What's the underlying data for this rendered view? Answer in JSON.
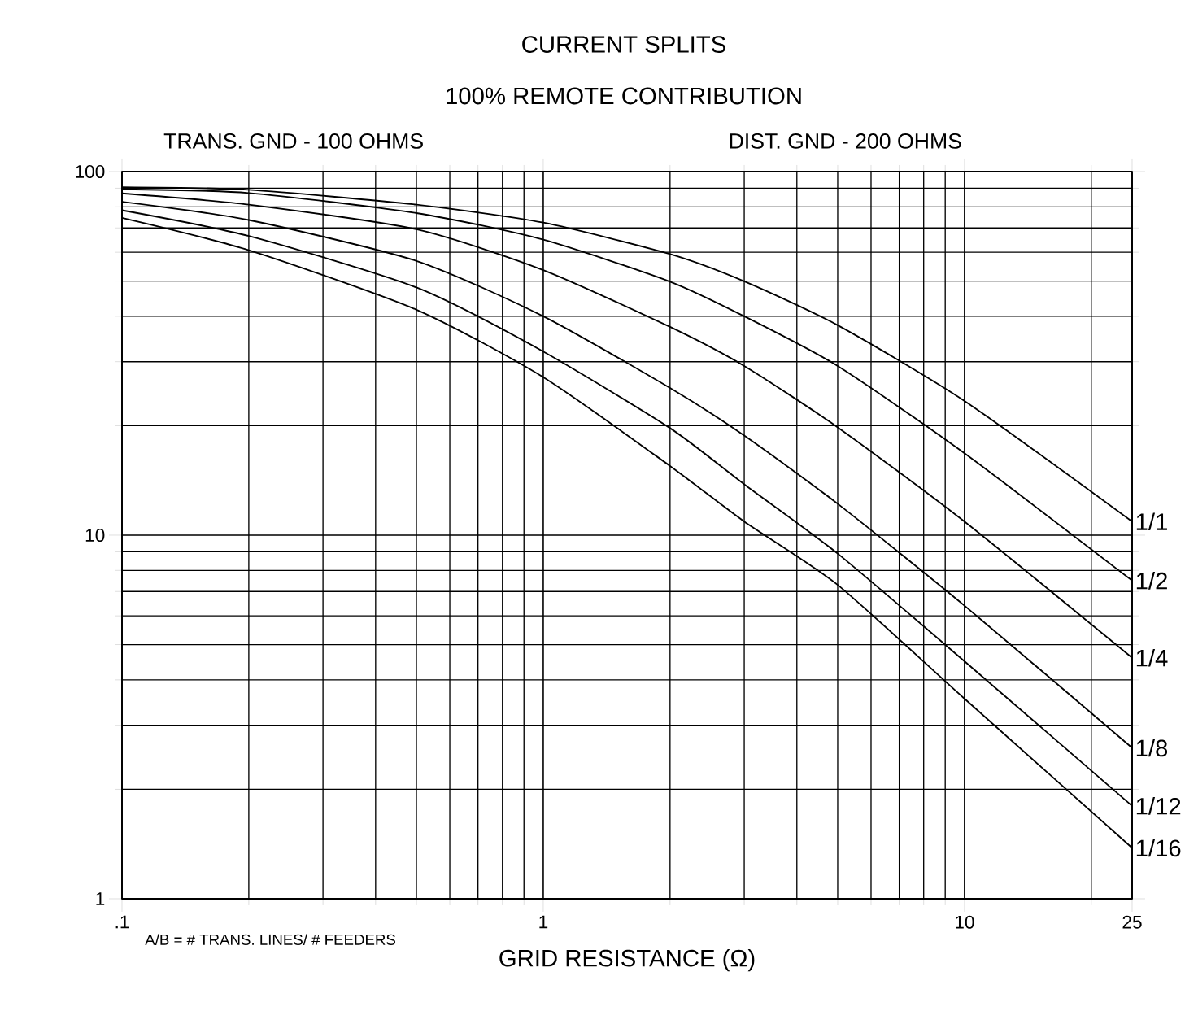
{
  "chart_data": {
    "type": "line",
    "title": "CURRENT SPLITS",
    "subtitle": "100% REMOTE CONTRIBUTION",
    "xlabel": "GRID RESISTANCE (Ω)",
    "annotations": [
      "TRANS. GND - 100 OHMS",
      "DIST. GND - 200 OHMS",
      "A/B = # TRANS. LINES/ # FEEDERS"
    ],
    "x": [
      0.1,
      0.2,
      0.5,
      1,
      2,
      3,
      5,
      10,
      25
    ],
    "series": [
      {
        "name": "1/1",
        "color": "#000000",
        "values": [
          90.6,
          89.1,
          81.1,
          72.4,
          59.3,
          49.9,
          37.8,
          23.4,
          10.9
        ]
      },
      {
        "name": "1/2",
        "color": "#000000",
        "values": [
          89.4,
          87.3,
          76.9,
          65.0,
          49.8,
          40.0,
          29.2,
          16.8,
          7.5
        ]
      },
      {
        "name": "1/4",
        "color": "#000000",
        "values": [
          87.1,
          81.1,
          69.4,
          53.6,
          37.4,
          29.2,
          19.8,
          10.9,
          4.6
        ]
      },
      {
        "name": "1/8",
        "color": "#000000",
        "values": [
          82.6,
          73.6,
          56.8,
          40.0,
          25.4,
          18.8,
          12.2,
          6.4,
          2.6
        ]
      },
      {
        "name": "1/12",
        "color": "#000000",
        "values": [
          78.3,
          66.5,
          48.0,
          32.0,
          19.7,
          13.8,
          8.9,
          4.5,
          1.8
        ]
      },
      {
        "name": "1/16",
        "color": "#000000",
        "values": [
          74.6,
          60.8,
          41.7,
          27.2,
          15.5,
          10.9,
          7.3,
          3.55,
          1.38
        ]
      }
    ],
    "log": "xy",
    "xlim": [
      0.1,
      25
    ],
    "ylim": [
      1,
      100
    ],
    "xticks": [
      {
        "value": 0.1,
        "label": ".1"
      },
      1,
      10,
      25
    ],
    "yticks": [
      1,
      10,
      100
    ],
    "grid": true,
    "marker": "none",
    "line_style": "solid"
  }
}
